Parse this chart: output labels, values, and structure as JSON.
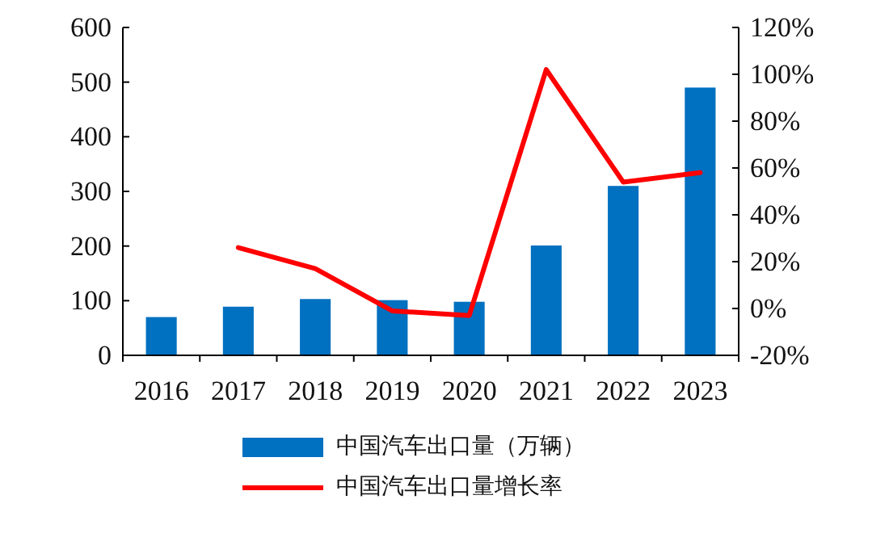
{
  "chart_data": {
    "type": "bar",
    "categories": [
      "2016",
      "2017",
      "2018",
      "2019",
      "2020",
      "2021",
      "2022",
      "2023"
    ],
    "series": [
      {
        "name": "中国汽车出口量（万辆）",
        "color": "#0070c0",
        "values": [
          70,
          89,
          103,
          101,
          98,
          201,
          310,
          490
        ]
      },
      {
        "name": "中国汽车出口量增长率",
        "type": "line",
        "axis": "y2",
        "color": "#ff0000",
        "values": [
          null,
          26,
          17,
          -1,
          -3,
          102,
          54,
          58
        ]
      }
    ],
    "ylim": [
      0,
      600
    ],
    "yticks": [
      0,
      100,
      200,
      300,
      400,
      500,
      600
    ],
    "y2lim": [
      -20,
      120
    ],
    "y2ticks": [
      {
        "value": -20,
        "label": "-20%"
      },
      {
        "value": 0,
        "label": "0%"
      },
      {
        "value": 20,
        "label": "20%"
      },
      {
        "value": 40,
        "label": "40%"
      },
      {
        "value": 60,
        "label": "60%"
      },
      {
        "value": 80,
        "label": "80%"
      },
      {
        "value": 100,
        "label": "100%"
      },
      {
        "value": 120,
        "label": "120%"
      }
    ],
    "legend": "bottom",
    "marker": "none",
    "grid": false
  }
}
